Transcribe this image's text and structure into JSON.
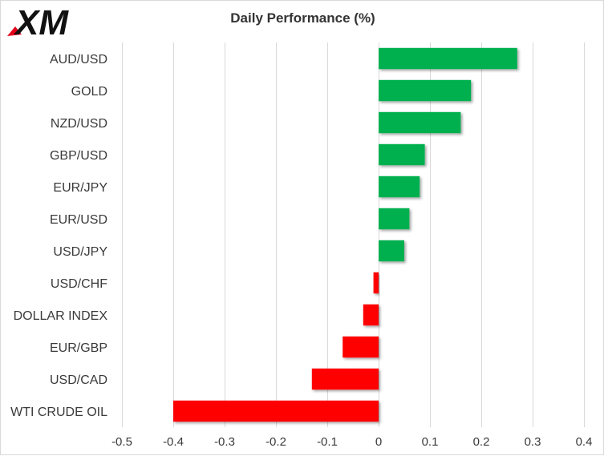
{
  "brand": {
    "name": "XM",
    "accent": "#e3001b"
  },
  "chart_data": {
    "type": "bar",
    "orientation": "horizontal",
    "title": "Daily Performance  (%)",
    "categories": [
      "AUD/USD",
      "GOLD",
      "NZD/USD",
      "GBP/USD",
      "EUR/JPY",
      "EUR/USD",
      "USD/JPY",
      "USD/CHF",
      "DOLLAR INDEX",
      "EUR/GBP",
      "USD/CAD",
      "WTI CRUDE OIL"
    ],
    "values": [
      0.27,
      0.18,
      0.16,
      0.09,
      0.08,
      0.06,
      0.05,
      -0.01,
      -0.03,
      -0.07,
      -0.13,
      -0.4
    ],
    "xlim": [
      -0.5,
      0.4
    ],
    "xticks": [
      -0.5,
      -0.4,
      -0.3,
      -0.2,
      -0.1,
      0,
      0.1,
      0.2,
      0.3,
      0.4
    ],
    "xtick_labels": [
      "-0.5",
      "-0.4",
      "-0.3",
      "-0.2",
      "-0.1",
      "0",
      "0.1",
      "0.2",
      "0.3",
      "0.4"
    ],
    "grid": true,
    "legend": "none",
    "colors": {
      "positive": "#00b050",
      "negative": "#ff0000",
      "grid": "#d9d9d9"
    }
  }
}
